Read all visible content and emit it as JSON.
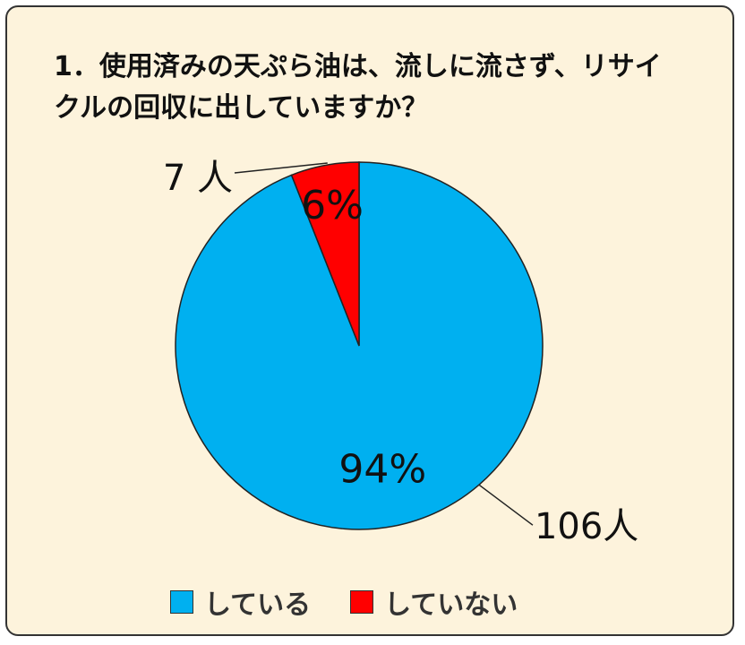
{
  "chart_data": {
    "type": "pie",
    "title": "1．使用済みの天ぷら油は、流しに流さず、リサイクルの回収に出していますか？",
    "categories": [
      "している",
      "していない"
    ],
    "values": [
      94,
      6
    ],
    "percent_labels": [
      "94%",
      "6%"
    ],
    "counts": [
      106,
      7
    ],
    "count_labels": [
      "106人",
      "7 人"
    ],
    "colors": [
      "#00b0f0",
      "#ff0000"
    ],
    "legend_position": "bottom"
  }
}
